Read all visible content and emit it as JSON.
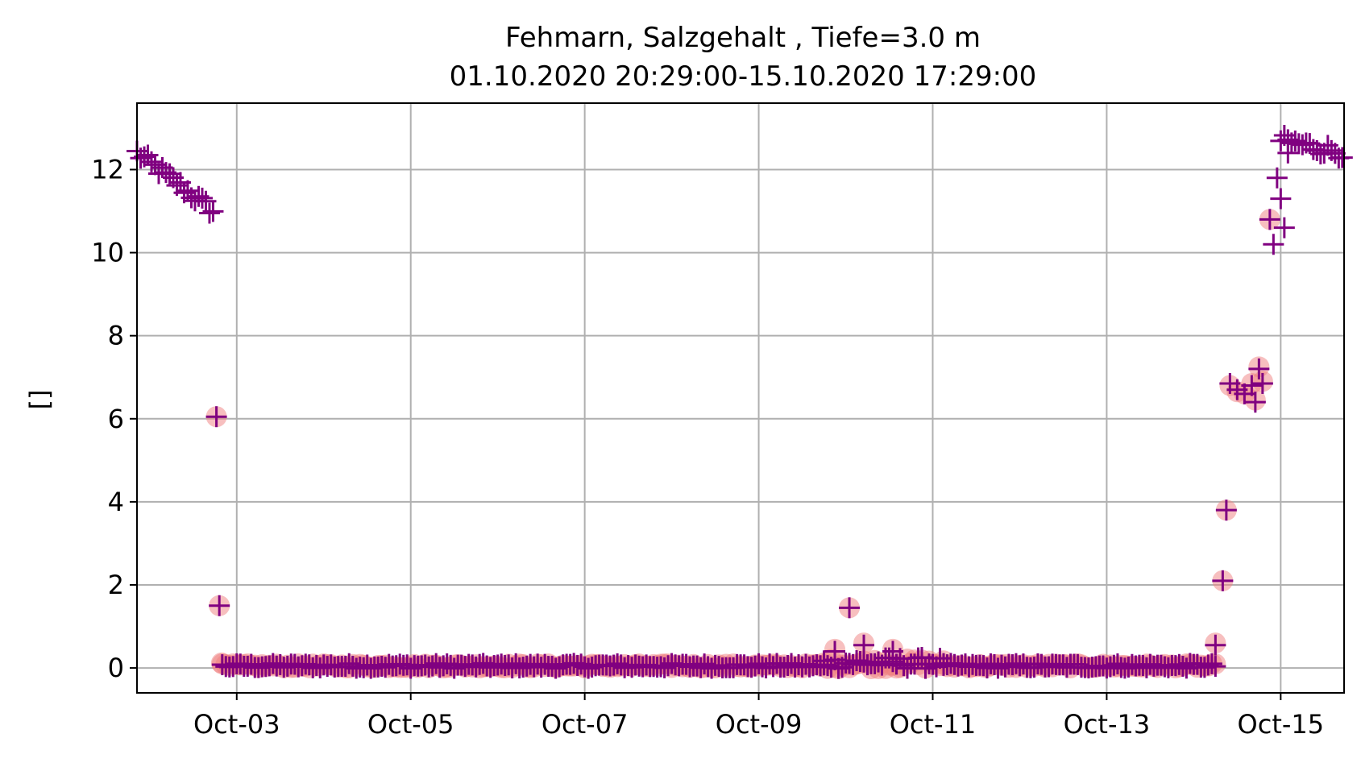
{
  "chart_data": {
    "type": "scatter",
    "title": "Fehmarn, Salzgehalt , Tiefe=3.0 m",
    "subtitle": "01.10.2020 20:29:00-15.10.2020 17:29:00",
    "xlabel": "",
    "ylabel": "[]",
    "xlim": [
      "2020-10-01T20:29:00",
      "2020-10-15T17:29:00"
    ],
    "ylim": [
      -0.6,
      13.6
    ],
    "x_ticks": [
      "2020-10-03",
      "2020-10-05",
      "2020-10-07",
      "2020-10-09",
      "2020-10-11",
      "2020-10-13",
      "2020-10-15"
    ],
    "x_tick_labels": [
      "Oct-03",
      "Oct-05",
      "Oct-07",
      "Oct-09",
      "Oct-11",
      "Oct-13",
      "Oct-15"
    ],
    "y_ticks": [
      0,
      2,
      4,
      6,
      8,
      10,
      12
    ],
    "grid": true,
    "colors": {
      "plus_marker": "#800080",
      "circle_marker": "#f08080",
      "grid": "#b0b0b0"
    },
    "series": [
      {
        "marker": "plus",
        "color": "#800080",
        "segments": [
          {
            "start": "2020-10-01T20:29:00",
            "end": "2020-10-02T17:30:00",
            "step_hours": 1,
            "y_start": 12.4,
            "y_end": 11.0,
            "jitter": 0.15
          },
          {
            "start": "2020-10-02T20:00:00",
            "end": "2020-10-09T18:00:00",
            "step_hours": 1,
            "y_start": 0.05,
            "y_end": 0.05,
            "jitter": 0.06
          },
          {
            "start": "2020-10-09T18:00:00",
            "end": "2020-10-11T03:00:00",
            "step_hours": 1,
            "y_start": 0.12,
            "y_end": 0.12,
            "jitter": 0.14
          },
          {
            "start": "2020-10-11T03:00:00",
            "end": "2020-10-14T06:00:00",
            "step_hours": 1,
            "y_start": 0.05,
            "y_end": 0.05,
            "jitter": 0.06
          },
          {
            "start": "2020-10-15T00:00:00",
            "end": "2020-10-15T17:29:00",
            "step_hours": 1,
            "y_start": 12.7,
            "y_end": 12.4,
            "jitter": 0.15
          }
        ],
        "points": [
          {
            "x": "2020-10-02T18:24:00",
            "y": 6.05
          },
          {
            "x": "2020-10-02T19:12:00",
            "y": 1.5
          },
          {
            "x": "2020-10-09T21:00:00",
            "y": 0.4
          },
          {
            "x": "2020-10-10T01:00:00",
            "y": 1.45
          },
          {
            "x": "2020-10-10T05:00:00",
            "y": 0.55
          },
          {
            "x": "2020-10-10T13:00:00",
            "y": 0.4
          },
          {
            "x": "2020-10-14T06:00:00",
            "y": 0.55
          },
          {
            "x": "2020-10-14T08:00:00",
            "y": 2.1
          },
          {
            "x": "2020-10-14T09:00:00",
            "y": 3.8
          },
          {
            "x": "2020-10-14T10:00:00",
            "y": 6.85
          },
          {
            "x": "2020-10-14T12:00:00",
            "y": 6.7
          },
          {
            "x": "2020-10-14T14:00:00",
            "y": 6.6
          },
          {
            "x": "2020-10-14T16:00:00",
            "y": 6.8
          },
          {
            "x": "2020-10-14T17:00:00",
            "y": 6.4
          },
          {
            "x": "2020-10-14T18:00:00",
            "y": 7.2
          },
          {
            "x": "2020-10-14T19:00:00",
            "y": 6.85
          },
          {
            "x": "2020-10-14T21:00:00",
            "y": 10.8
          },
          {
            "x": "2020-10-14T22:00:00",
            "y": 10.2
          },
          {
            "x": "2020-10-14T23:00:00",
            "y": 11.8
          },
          {
            "x": "2020-10-15T00:00:00",
            "y": 11.3
          },
          {
            "x": "2020-10-15T01:00:00",
            "y": 10.6
          },
          {
            "x": "2020-10-15T02:00:00",
            "y": 12.4
          }
        ]
      },
      {
        "marker": "circle",
        "color": "#f08080",
        "segments": [
          {
            "start": "2020-10-02T20:00:00",
            "end": "2020-10-09T18:00:00",
            "step_hours": 1,
            "y_start": 0.05,
            "y_end": 0.05,
            "jitter": 0.05
          },
          {
            "start": "2020-10-09T18:00:00",
            "end": "2020-10-11T03:00:00",
            "step_hours": 1,
            "y_start": 0.1,
            "y_end": 0.1,
            "jitter": 0.12
          },
          {
            "start": "2020-10-11T03:00:00",
            "end": "2020-10-14T06:00:00",
            "step_hours": 1,
            "y_start": 0.05,
            "y_end": 0.05,
            "jitter": 0.05
          }
        ],
        "points": [
          {
            "x": "2020-10-02T18:24:00",
            "y": 6.05
          },
          {
            "x": "2020-10-02T19:12:00",
            "y": 1.5
          },
          {
            "x": "2020-10-02T19:48:00",
            "y": 0.12
          },
          {
            "x": "2020-10-09T21:00:00",
            "y": 0.45
          },
          {
            "x": "2020-10-10T01:00:00",
            "y": 1.45
          },
          {
            "x": "2020-10-10T05:00:00",
            "y": 0.6
          },
          {
            "x": "2020-10-10T13:00:00",
            "y": 0.45
          },
          {
            "x": "2020-10-14T06:00:00",
            "y": 0.6
          },
          {
            "x": "2020-10-14T08:00:00",
            "y": 2.1
          },
          {
            "x": "2020-10-14T09:00:00",
            "y": 3.8
          },
          {
            "x": "2020-10-14T10:00:00",
            "y": 6.8
          },
          {
            "x": "2020-10-14T12:00:00",
            "y": 6.65
          },
          {
            "x": "2020-10-14T14:00:00",
            "y": 6.6
          },
          {
            "x": "2020-10-14T16:00:00",
            "y": 6.85
          },
          {
            "x": "2020-10-14T17:00:00",
            "y": 6.45
          },
          {
            "x": "2020-10-14T18:00:00",
            "y": 7.25
          },
          {
            "x": "2020-10-14T19:00:00",
            "y": 6.9
          },
          {
            "x": "2020-10-14T21:00:00",
            "y": 10.8
          }
        ]
      }
    ]
  }
}
